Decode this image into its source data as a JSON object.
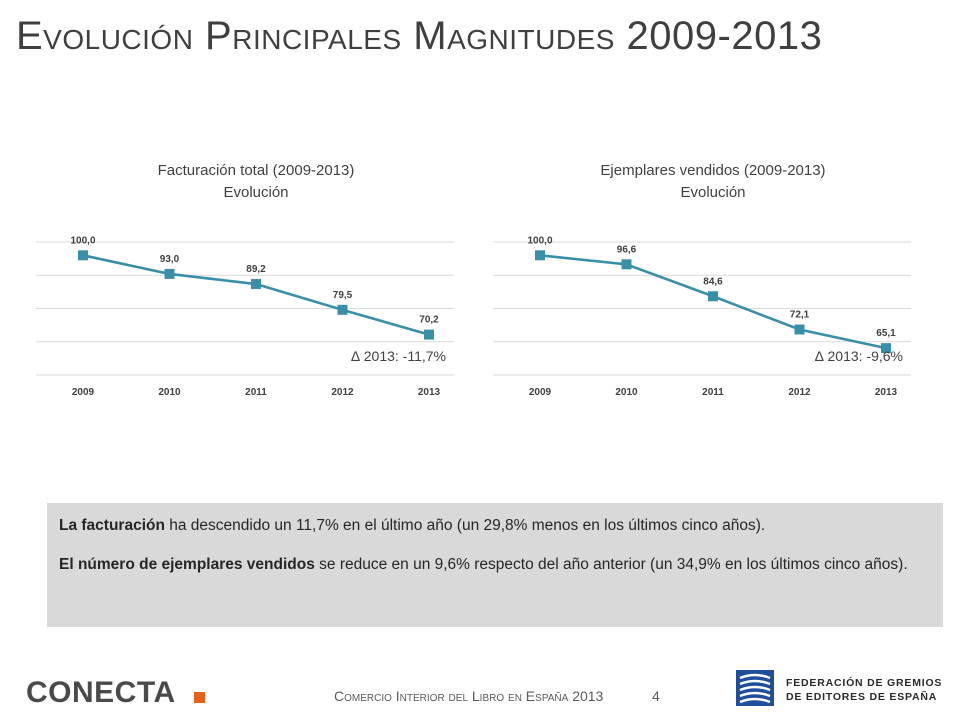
{
  "title": "Evolución Principales Magnitudes 2009-2013",
  "chart_data": [
    {
      "type": "line",
      "title": "Facturación total (2009-2013)",
      "subtitle": "Evolución",
      "categories": [
        "2009",
        "2010",
        "2011",
        "2012",
        "2013"
      ],
      "values": [
        100.0,
        93.0,
        89.2,
        79.5,
        70.2
      ],
      "labels": [
        "100,0",
        "93,0",
        "89,2",
        "79,5",
        "70,2"
      ],
      "annotation": "∆ 2013: -11,7%",
      "ylim": [
        55,
        105
      ],
      "grid": true,
      "color": "#3a8fa8"
    },
    {
      "type": "line",
      "title": "Ejemplares vendidos (2009-2013)",
      "subtitle": "Evolución",
      "categories": [
        "2009",
        "2010",
        "2011",
        "2012",
        "2013"
      ],
      "values": [
        100.0,
        96.6,
        84.6,
        72.1,
        65.1
      ],
      "labels": [
        "100,0",
        "96,6",
        "84,6",
        "72,1",
        "65,1"
      ],
      "annotation": "∆ 2013: -9,6%",
      "ylim": [
        55,
        105
      ],
      "grid": true,
      "color": "#3a8fa8"
    }
  ],
  "summary": {
    "p1_bold": "La facturación",
    "p1_rest": " ha descendido un 11,7% en el último año (un 29,8% menos en los últimos cinco años).",
    "p2_bold": "El número de ejemplares vendidos",
    "p2_rest": " se reduce en un 9,6% respecto del año anterior (un 34,9% en los últimos cinco años)."
  },
  "footer": {
    "conecta_logo": "CONECTA",
    "text": "Comercio Interior del Libro en España 2013",
    "page": "4",
    "fge_line1": "FEDERACIÓN DE GREMIOS",
    "fge_line2": "DE EDITORES DE ESPAÑA"
  }
}
